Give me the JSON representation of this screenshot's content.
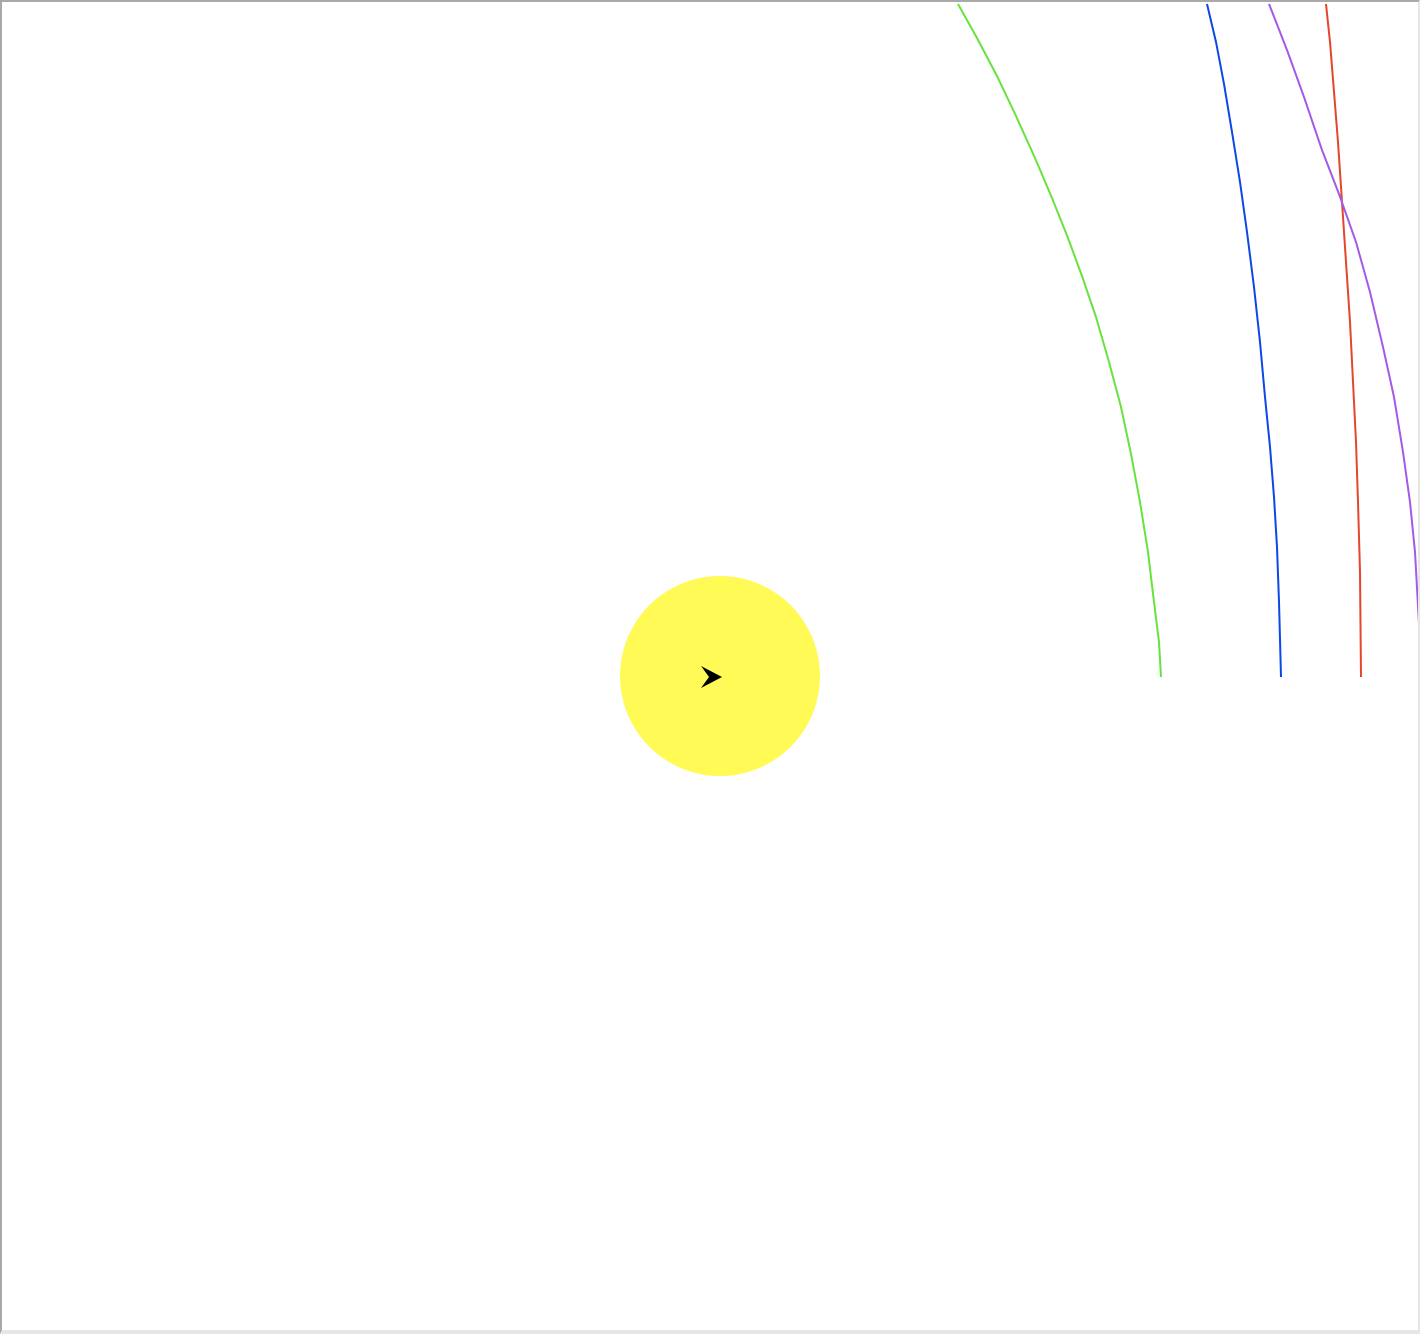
{
  "scene": {
    "background": "#ffffff",
    "frame_dark": "#a9a9a9",
    "frame_light": "#e6e6e6"
  },
  "sun": {
    "color": "#fffa55",
    "icon": "sun-icon"
  },
  "ship": {
    "color": "#000000",
    "icon": "ship-arrow-icon",
    "heading": "right"
  },
  "orbits": [
    {
      "name": "green-orbit",
      "color": "#66e33f"
    },
    {
      "name": "blue-orbit",
      "color": "#0c47e8"
    },
    {
      "name": "red-orbit",
      "color": "#e4462d"
    },
    {
      "name": "purple-orbit",
      "color": "#a35ae6"
    }
  ]
}
